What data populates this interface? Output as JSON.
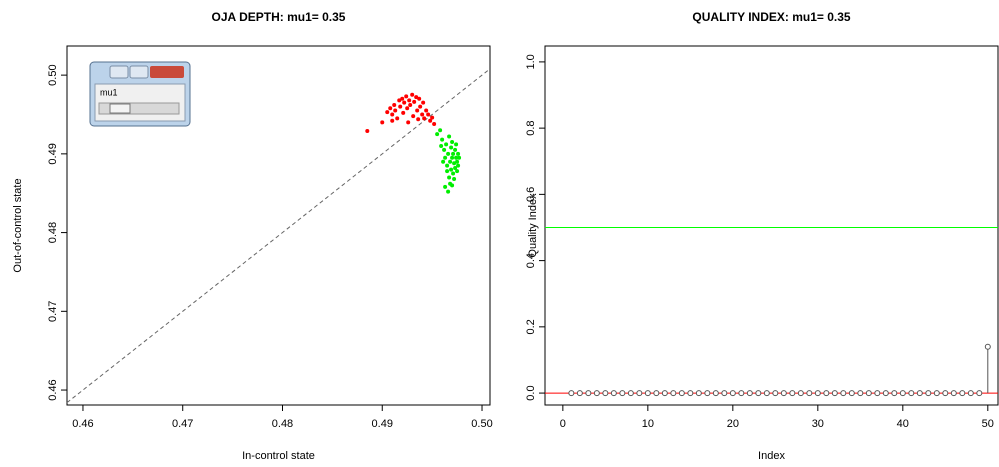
{
  "chart_data": [
    {
      "type": "scatter",
      "title": "OJA DEPTH: mu1= 0.35",
      "x_label": "In-control state",
      "y_label": "Out-of-control state",
      "xlim": [
        0.4584,
        0.5008
      ],
      "ylim": [
        0.4581,
        0.5037
      ],
      "xticks": [
        0.46,
        0.47,
        0.48,
        0.49,
        {
          "value": 0.5,
          "label": "0.50"
        }
      ],
      "yticks": [
        0.46,
        0.47,
        0.48,
        0.49,
        {
          "value": 0.5,
          "label": "0.50"
        }
      ],
      "slider_label": "mu1",
      "series": [
        {
          "color": "#ff0000",
          "x": [
            0.4885,
            0.49,
            0.4905,
            0.4908,
            0.491,
            0.4912,
            0.4913,
            0.4915,
            0.4917,
            0.4918,
            0.492,
            0.4921,
            0.4922,
            0.4924,
            0.4925,
            0.4926,
            0.4927,
            0.4928,
            0.493,
            0.4931,
            0.4932,
            0.4934,
            0.4935,
            0.4936,
            0.4937,
            0.4938,
            0.494,
            0.4941,
            0.4942,
            0.4944,
            0.4946,
            0.4948,
            0.495,
            0.4952,
            0.491
          ],
          "values": [
            0.4929,
            0.494,
            0.4953,
            0.4958,
            0.495,
            0.4962,
            0.4955,
            0.4945,
            0.4968,
            0.496,
            0.497,
            0.4952,
            0.4965,
            0.4973,
            0.4958,
            0.494,
            0.4968,
            0.4962,
            0.4975,
            0.4948,
            0.4966,
            0.4972,
            0.4955,
            0.4944,
            0.497,
            0.496,
            0.495,
            0.4965,
            0.4945,
            0.4955,
            0.495,
            0.4942,
            0.4946,
            0.4938,
            0.4942
          ]
        },
        {
          "color": "#00ee00",
          "x": [
            0.4955,
            0.4958,
            0.496,
            0.4962,
            0.4963,
            0.4964,
            0.4965,
            0.4965,
            0.4966,
            0.4967,
            0.4967,
            0.4968,
            0.4968,
            0.4969,
            0.4969,
            0.497,
            0.497,
            0.4971,
            0.4971,
            0.4972,
            0.4972,
            0.4973,
            0.4973,
            0.4974,
            0.4974,
            0.4975,
            0.4975,
            0.4976,
            0.4976,
            0.4977,
            0.4963,
            0.4966,
            0.497,
            0.4961,
            0.4959
          ],
          "values": [
            0.4925,
            0.493,
            0.4918,
            0.4905,
            0.4895,
            0.4912,
            0.4885,
            0.4878,
            0.49,
            0.487,
            0.4922,
            0.489,
            0.4862,
            0.4908,
            0.488,
            0.4895,
            0.4915,
            0.4875,
            0.49,
            0.4888,
            0.4868,
            0.4905,
            0.4882,
            0.4895,
            0.4912,
            0.4878,
            0.489,
            0.49,
            0.4885,
            0.4895,
            0.4858,
            0.4852,
            0.486,
            0.489,
            0.491
          ]
        }
      ]
    },
    {
      "type": "stem",
      "title": "QUALITY INDEX: mu1= 0.35",
      "x_label": "Index",
      "y_label": "Quality Index",
      "xlim": [
        -2.1,
        51.2
      ],
      "ylim": [
        -0.036,
        1.048
      ],
      "xticks": [
        0,
        10,
        20,
        30,
        40,
        50
      ],
      "yticks": [
        {
          "value": 0,
          "label": "0.0"
        },
        0.2,
        0.4,
        0.6,
        0.8,
        {
          "value": 1,
          "label": "1.0"
        }
      ],
      "hlines": [
        {
          "value": 0.5,
          "color": "#00ff00"
        },
        {
          "value": 0,
          "color": "#ff0000"
        }
      ],
      "color": "#555555",
      "x": [
        1,
        2,
        3,
        4,
        5,
        6,
        7,
        8,
        9,
        10,
        11,
        12,
        13,
        14,
        15,
        16,
        17,
        18,
        19,
        20,
        21,
        22,
        23,
        24,
        25,
        26,
        27,
        28,
        29,
        30,
        31,
        32,
        33,
        34,
        35,
        36,
        37,
        38,
        39,
        40,
        41,
        42,
        43,
        44,
        45,
        46,
        47,
        48,
        49,
        50
      ],
      "values": [
        0,
        0,
        0,
        0,
        0,
        0,
        0,
        0,
        0,
        0,
        0,
        0,
        0,
        0,
        0,
        0,
        0,
        0,
        0,
        0,
        0,
        0,
        0,
        0,
        0,
        0,
        0,
        0,
        0,
        0,
        0,
        0,
        0,
        0,
        0,
        0,
        0,
        0,
        0,
        0,
        0,
        0,
        0,
        0,
        0,
        0,
        0,
        0,
        0,
        0.14
      ]
    }
  ]
}
